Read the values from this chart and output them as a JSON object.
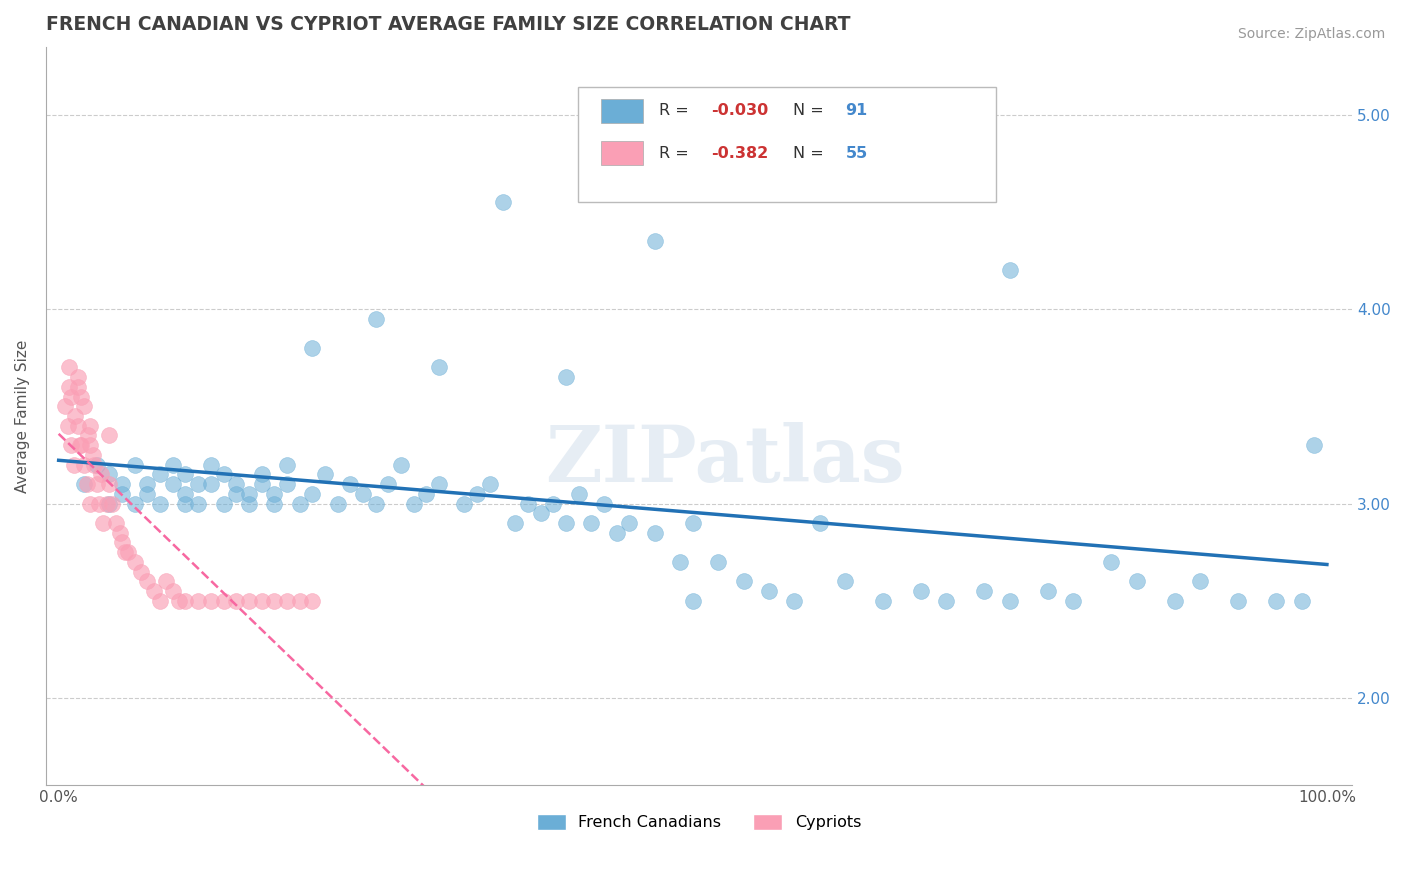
{
  "title": "FRENCH CANADIAN VS CYPRIOT AVERAGE FAMILY SIZE CORRELATION CHART",
  "source": "Source: ZipAtlas.com",
  "ylabel": "Average Family Size",
  "xlim": [
    -0.01,
    1.02
  ],
  "ylim": [
    1.55,
    5.35
  ],
  "yticks": [
    2.0,
    3.0,
    4.0,
    5.0
  ],
  "yticklabels": [
    "2.00",
    "3.00",
    "4.00",
    "5.00"
  ],
  "xticks": [
    0.0,
    0.25,
    0.5,
    0.75,
    1.0
  ],
  "xticklabels": [
    "0.0%",
    "",
    "",
    "",
    "100.0%"
  ],
  "blue_R": -0.03,
  "blue_N": 91,
  "pink_R": -0.382,
  "pink_N": 55,
  "blue_color": "#6baed6",
  "pink_color": "#fa9fb5",
  "blue_line_color": "#2171b5",
  "pink_line_color": "#f768a1",
  "watermark": "ZIPatlas",
  "title_color": "#404040",
  "legend_R_color": "#cc3333",
  "legend_N_color": "#4488cc",
  "grid_color": "#cccccc",
  "blue_x": [
    0.02,
    0.03,
    0.04,
    0.04,
    0.05,
    0.05,
    0.06,
    0.06,
    0.07,
    0.07,
    0.08,
    0.08,
    0.09,
    0.09,
    0.1,
    0.1,
    0.1,
    0.11,
    0.11,
    0.12,
    0.12,
    0.13,
    0.13,
    0.14,
    0.14,
    0.15,
    0.15,
    0.16,
    0.16,
    0.17,
    0.17,
    0.18,
    0.18,
    0.19,
    0.2,
    0.21,
    0.22,
    0.23,
    0.24,
    0.25,
    0.26,
    0.27,
    0.28,
    0.29,
    0.3,
    0.32,
    0.33,
    0.34,
    0.36,
    0.37,
    0.38,
    0.39,
    0.4,
    0.41,
    0.42,
    0.43,
    0.44,
    0.45,
    0.47,
    0.49,
    0.5,
    0.52,
    0.54,
    0.56,
    0.58,
    0.6,
    0.62,
    0.65,
    0.68,
    0.7,
    0.73,
    0.75,
    0.78,
    0.8,
    0.83,
    0.85,
    0.88,
    0.9,
    0.93,
    0.96,
    0.98,
    0.35,
    0.47,
    0.6,
    0.75,
    0.2,
    0.25,
    0.3,
    0.4,
    0.5,
    0.99
  ],
  "blue_y": [
    3.1,
    3.2,
    3.0,
    3.15,
    3.05,
    3.1,
    3.2,
    3.0,
    3.1,
    3.05,
    3.15,
    3.0,
    3.1,
    3.2,
    3.0,
    3.15,
    3.05,
    3.1,
    3.0,
    3.2,
    3.1,
    3.0,
    3.15,
    3.05,
    3.1,
    3.0,
    3.05,
    3.15,
    3.1,
    3.0,
    3.05,
    3.2,
    3.1,
    3.0,
    3.05,
    3.15,
    3.0,
    3.1,
    3.05,
    3.0,
    3.1,
    3.2,
    3.0,
    3.05,
    3.1,
    3.0,
    3.05,
    3.1,
    2.9,
    3.0,
    2.95,
    3.0,
    2.9,
    3.05,
    2.9,
    3.0,
    2.85,
    2.9,
    2.85,
    2.7,
    2.9,
    2.7,
    2.6,
    2.55,
    2.5,
    2.9,
    2.6,
    2.5,
    2.55,
    2.5,
    2.55,
    2.5,
    2.55,
    2.5,
    2.7,
    2.6,
    2.5,
    2.6,
    2.5,
    2.5,
    2.5,
    4.55,
    4.35,
    4.6,
    4.2,
    3.8,
    3.95,
    3.7,
    3.65,
    2.5,
    3.3
  ],
  "pink_x": [
    0.005,
    0.007,
    0.008,
    0.01,
    0.01,
    0.012,
    0.013,
    0.015,
    0.015,
    0.017,
    0.018,
    0.018,
    0.02,
    0.02,
    0.022,
    0.023,
    0.025,
    0.025,
    0.027,
    0.028,
    0.03,
    0.032,
    0.033,
    0.035,
    0.038,
    0.04,
    0.04,
    0.042,
    0.045,
    0.048,
    0.05,
    0.052,
    0.055,
    0.06,
    0.065,
    0.07,
    0.075,
    0.08,
    0.085,
    0.09,
    0.095,
    0.1,
    0.11,
    0.12,
    0.13,
    0.14,
    0.15,
    0.16,
    0.17,
    0.18,
    0.19,
    0.2,
    0.008,
    0.015,
    0.025
  ],
  "pink_y": [
    3.5,
    3.4,
    3.6,
    3.3,
    3.55,
    3.2,
    3.45,
    3.4,
    3.65,
    3.3,
    3.3,
    3.55,
    3.2,
    3.5,
    3.1,
    3.35,
    3.0,
    3.4,
    3.25,
    3.2,
    3.1,
    3.0,
    3.15,
    2.9,
    3.0,
    3.1,
    3.35,
    3.0,
    2.9,
    2.85,
    2.8,
    2.75,
    2.75,
    2.7,
    2.65,
    2.6,
    2.55,
    2.5,
    2.6,
    2.55,
    2.5,
    2.5,
    2.5,
    2.5,
    2.5,
    2.5,
    2.5,
    2.5,
    2.5,
    2.5,
    2.5,
    2.5,
    3.7,
    3.6,
    3.3
  ]
}
